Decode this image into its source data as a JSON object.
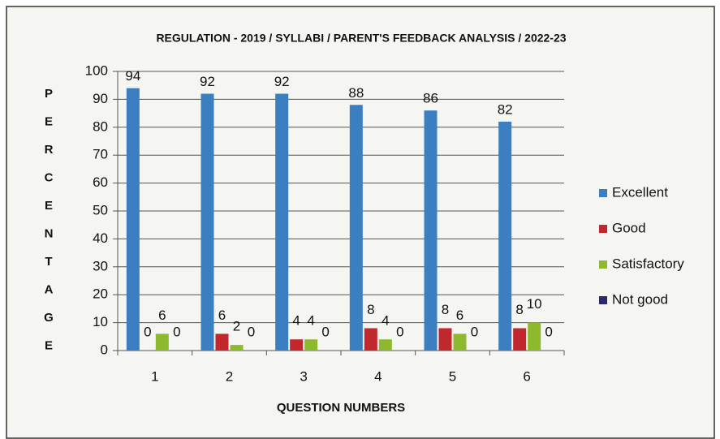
{
  "chart_data": {
    "type": "bar",
    "title": "REGULATION - 2019 / SYLLABI / PARENT'S FEEDBACK ANALYSIS / 2022-23",
    "x_label": "QUESTION NUMBERS",
    "y_label": "PERCENTAGE",
    "categories": [
      "1",
      "2",
      "3",
      "4",
      "5",
      "6"
    ],
    "series": [
      {
        "name": "Excellent",
        "color": "#3b7fc0",
        "values": [
          94,
          92,
          92,
          88,
          86,
          82
        ]
      },
      {
        "name": "Good",
        "color": "#c0282d",
        "values": [
          0,
          6,
          4,
          8,
          8,
          8
        ]
      },
      {
        "name": "Satisfactory",
        "color": "#8db92e",
        "values": [
          6,
          2,
          4,
          4,
          6,
          10
        ]
      },
      {
        "name": "Not good",
        "color": "#2b2a6b",
        "values": [
          0,
          0,
          0,
          0,
          0,
          0
        ]
      }
    ],
    "ylim": [
      0,
      100
    ],
    "yticks": [
      0,
      10,
      20,
      30,
      40,
      50,
      60,
      70,
      80,
      90,
      100
    ],
    "grid": true,
    "legend": "right"
  }
}
